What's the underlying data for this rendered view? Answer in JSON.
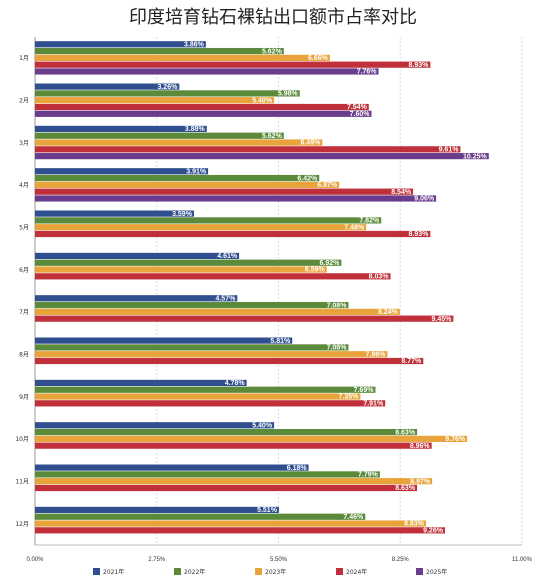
{
  "chart_data": {
    "type": "bar",
    "orientation": "horizontal",
    "title": "印度培育钻石裸钻出口额市占率对比",
    "categories": [
      "1月",
      "2月",
      "3月",
      "4月",
      "5月",
      "6月",
      "7月",
      "8月",
      "9月",
      "10月",
      "11月",
      "12月"
    ],
    "series": [
      {
        "name": "2021年",
        "color": "#2f4f8f",
        "labels": [
          "3.86%",
          "3.26%",
          "3.88%",
          "3.91%",
          "3.59%",
          "4.61%",
          "4.57%",
          "5.81%",
          "4.78%",
          "5.40%",
          "6.18%",
          "5.51%"
        ]
      },
      {
        "name": "2022年",
        "color": "#5a8a3a",
        "labels": [
          "5.62%",
          "5.98%",
          "5.62%",
          "6.42%",
          "7.82%",
          "6.92%",
          "7.08%",
          "7.08%",
          "7.69%",
          "8.63%",
          "7.79%",
          "7.46%"
        ]
      },
      {
        "name": "2023年",
        "color": "#e8a33a",
        "labels": [
          "6.66%",
          "5.40%",
          "6.49%",
          "6.87%",
          "7.48%",
          "6.59%",
          "8.24%",
          "7.96%",
          "7.35%",
          "9.76%",
          "8.97%",
          "8.83%"
        ]
      },
      {
        "name": "2024年",
        "color": "#c0303a",
        "labels": [
          "8.93%",
          "7.54%",
          "9.61%",
          "8.54%",
          "8.93%",
          "8.03%",
          "9.45%",
          "8.77%",
          "7.91%",
          "8.96%",
          "8.63%",
          "9.26%"
        ]
      },
      {
        "name": "2025年",
        "color": "#6a3d8c",
        "labels": [
          "7.76%",
          "7.60%",
          "10.25%",
          "9.06%",
          "",
          "",
          "",
          "",
          "",
          "",
          "",
          ""
        ]
      }
    ],
    "xlim": [
      0,
      11
    ],
    "xticks": [
      "0.00%",
      "2.75%",
      "5.50%",
      "8.25%",
      "11.00%"
    ],
    "grid": true,
    "legend": "bottom"
  }
}
